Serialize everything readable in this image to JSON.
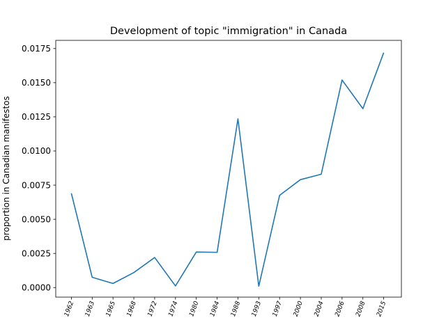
{
  "chart_data": {
    "type": "line",
    "title": "Development of topic \"immigration\" in Canada",
    "xlabel": "",
    "ylabel": "proportion in Canadian manifestos",
    "categories": [
      "1962",
      "1963",
      "1965",
      "1968",
      "1972",
      "1974",
      "1980",
      "1984",
      "1988",
      "1993",
      "1997",
      "2000",
      "2004",
      "2006",
      "2008",
      "2015"
    ],
    "series": [
      {
        "values": [
          0.0069,
          0.00075,
          0.0003,
          0.0011,
          0.0022,
          0.00012,
          0.0026,
          0.00258,
          0.01235,
          0.0001,
          0.00675,
          0.0079,
          0.0083,
          0.0152,
          0.0131,
          0.0172
        ],
        "color": "#1f77b4"
      }
    ],
    "ylim": [
      -0.0007,
      0.0181
    ],
    "yticks": [
      "0.0000",
      "0.0025",
      "0.0050",
      "0.0075",
      "0.0100",
      "0.0125",
      "0.0150",
      "0.0175"
    ],
    "ytick_values": [
      0.0,
      0.0025,
      0.005,
      0.0075,
      0.01,
      0.0125,
      0.015,
      0.0175
    ],
    "grid": false,
    "xtick_rotation": 70
  }
}
